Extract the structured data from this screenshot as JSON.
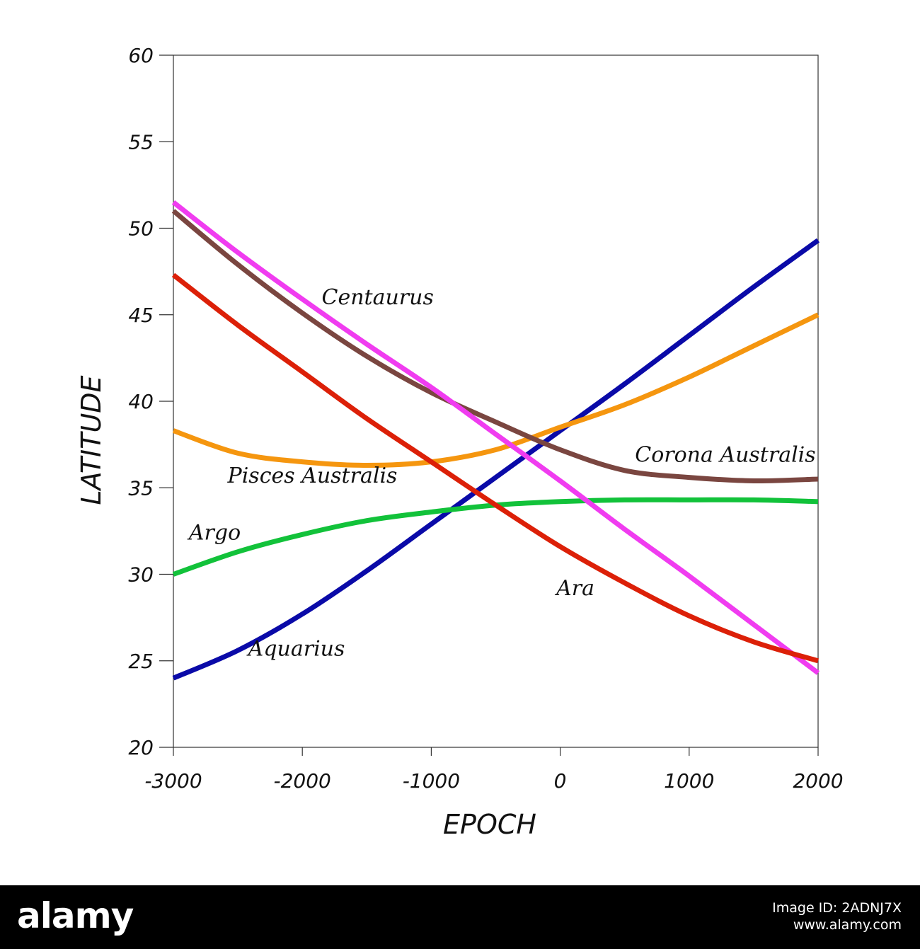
{
  "chart_data": {
    "type": "line",
    "title": "",
    "xlabel": "EPOCH",
    "ylabel": "LATITUDE",
    "xlim": [
      -3000,
      2000
    ],
    "ylim": [
      20,
      60
    ],
    "xticks": [
      -3000,
      -2000,
      -1000,
      0,
      1000,
      2000
    ],
    "yticks": [
      20,
      25,
      30,
      35,
      40,
      45,
      50,
      55,
      60
    ],
    "xtick_labels": [
      "-3000",
      "-2000",
      "-1000",
      "0",
      "1000",
      "2000"
    ],
    "ytick_labels": [
      "20",
      "25",
      "30",
      "35",
      "40",
      "45",
      "50",
      "55",
      "60"
    ],
    "grid": false,
    "legend": "none (series labelled directly on plot)",
    "series": [
      {
        "name": "Aquarius",
        "color": "#0a0aa8",
        "x": [
          -3000,
          -2500,
          -2000,
          -1500,
          -1000,
          -500,
          0,
          500,
          1000,
          1500,
          2000
        ],
        "y": [
          24.0,
          25.6,
          27.7,
          30.2,
          32.9,
          35.6,
          38.3,
          41.0,
          43.8,
          46.6,
          49.3
        ]
      },
      {
        "name": "Argo",
        "color": "#12c23a",
        "x": [
          -3000,
          -2500,
          -2000,
          -1500,
          -1000,
          -500,
          0,
          500,
          1000,
          1500,
          2000
        ],
        "y": [
          30.0,
          31.3,
          32.3,
          33.1,
          33.6,
          34.0,
          34.2,
          34.3,
          34.3,
          34.3,
          34.2
        ]
      },
      {
        "name": "Pisces Australis",
        "color": "#f5960f",
        "x": [
          -3000,
          -2500,
          -2000,
          -1500,
          -1000,
          -500,
          0,
          500,
          1000,
          1500,
          2000
        ],
        "y": [
          38.3,
          37.0,
          36.5,
          36.3,
          36.5,
          37.2,
          38.5,
          39.8,
          41.4,
          43.2,
          45.0
        ]
      },
      {
        "name": "Corona Australis",
        "color": "#7a4640",
        "x": [
          -3000,
          -2500,
          -2000,
          -1500,
          -1000,
          -500,
          0,
          500,
          1000,
          1500,
          2000
        ],
        "y": [
          51.0,
          47.9,
          45.1,
          42.6,
          40.5,
          38.8,
          37.2,
          36.0,
          35.6,
          35.4,
          35.5
        ]
      },
      {
        "name": "Centaurus",
        "color": "#f03cf0",
        "x": [
          -3000,
          -2500,
          -2000,
          -1500,
          -1000,
          -500,
          0,
          500,
          1000,
          1500,
          2000
        ],
        "y": [
          51.5,
          48.6,
          45.9,
          43.3,
          40.8,
          38.1,
          35.4,
          32.6,
          29.9,
          27.1,
          24.3
        ]
      },
      {
        "name": "Ara",
        "color": "#dc2008",
        "x": [
          -3000,
          -2500,
          -2000,
          -1500,
          -1000,
          -500,
          0,
          500,
          1000,
          1500,
          2000
        ],
        "y": [
          47.3,
          44.4,
          41.7,
          39.0,
          36.5,
          34.0,
          31.6,
          29.5,
          27.6,
          26.1,
          25.0
        ]
      }
    ],
    "annotations": [
      {
        "text": "Centaurus",
        "x": -1850,
        "y": 45.6
      },
      {
        "text": "Corona Australis",
        "x": 580,
        "y": 36.5
      },
      {
        "text": "Pisces Australis",
        "x": -2580,
        "y": 35.3
      },
      {
        "text": "Argo",
        "x": -2880,
        "y": 32.0
      },
      {
        "text": "Ara",
        "x": -30,
        "y": 28.8
      },
      {
        "text": "Aquarius",
        "x": -2420,
        "y": 25.3
      }
    ]
  },
  "footer": {
    "logo": "alamy",
    "image_id": "Image ID: 2ADNJ7X",
    "site": "www.alamy.com"
  }
}
